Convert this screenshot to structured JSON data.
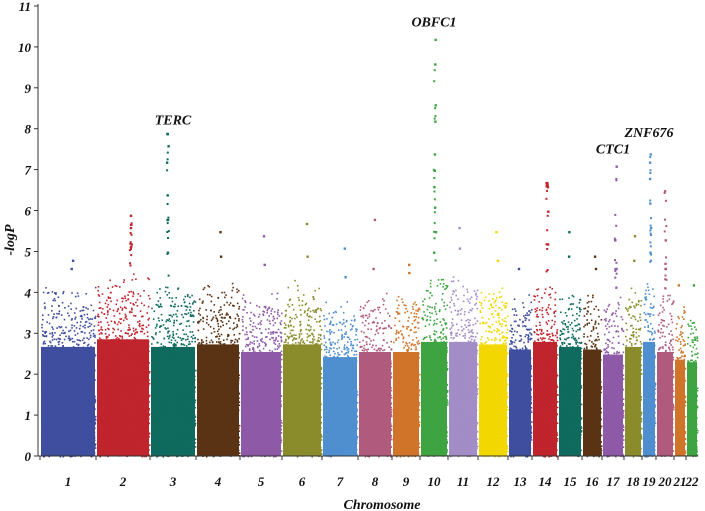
{
  "chart_data": {
    "type": "scatter",
    "subtype": "manhattan",
    "title": "",
    "xlabel": "Chromosome",
    "ylabel": "-logP",
    "ylim": [
      0,
      11
    ],
    "yticks": [
      0,
      1,
      2,
      3,
      4,
      5,
      6,
      7,
      8,
      9,
      10,
      11
    ],
    "chromosomes": [
      {
        "name": "1",
        "color": "#3f4e9e",
        "base_max": 4.3,
        "peaks": [
          4.6,
          4.8
        ]
      },
      {
        "name": "2",
        "color": "#c0242c",
        "base_max": 4.6,
        "peaks": [
          5.2,
          5.6,
          5.9
        ]
      },
      {
        "name": "3",
        "color": "#0f6b5e",
        "base_max": 4.3,
        "peaks": [
          5.0,
          5.8,
          6.4,
          7.2,
          7.6,
          7.9
        ]
      },
      {
        "name": "4",
        "color": "#5a3315",
        "base_max": 4.4,
        "peaks": [
          4.9,
          5.5
        ]
      },
      {
        "name": "5",
        "color": "#8e5aa8",
        "base_max": 4.1,
        "peaks": [
          4.7,
          5.4
        ]
      },
      {
        "name": "6",
        "color": "#8a8c2c",
        "base_max": 4.4,
        "peaks": [
          4.9,
          5.7
        ]
      },
      {
        "name": "7",
        "color": "#4f8fd0",
        "base_max": 3.9,
        "peaks": [
          4.4,
          5.1
        ]
      },
      {
        "name": "8",
        "color": "#b05b7e",
        "base_max": 4.1,
        "peaks": [
          4.6,
          5.8
        ]
      },
      {
        "name": "9",
        "color": "#d0742a",
        "base_max": 4.1,
        "peaks": [
          4.5,
          4.7
        ]
      },
      {
        "name": "10",
        "color": "#3ea441",
        "base_max": 4.5,
        "peaks": [
          5.0,
          5.5,
          6.1,
          6.6,
          7.0,
          7.4,
          8.2,
          8.6,
          9.6,
          10.2
        ]
      },
      {
        "name": "11",
        "color": "#a28dc6",
        "base_max": 4.5,
        "peaks": [
          5.1,
          5.6
        ]
      },
      {
        "name": "12",
        "color": "#f2d800",
        "base_max": 4.4,
        "peaks": [
          4.8,
          5.5
        ]
      },
      {
        "name": "13",
        "color": "#3f4e9e",
        "base_max": 4.2,
        "peaks": [
          4.6
        ]
      },
      {
        "name": "14",
        "color": "#c0242c",
        "base_max": 4.5,
        "peaks": [
          5.2,
          6.0,
          6.6,
          6.7
        ]
      },
      {
        "name": "15",
        "color": "#0f6b5e",
        "base_max": 4.3,
        "peaks": [
          4.9,
          5.5
        ]
      },
      {
        "name": "16",
        "color": "#5a3315",
        "base_max": 4.2,
        "peaks": [
          4.6,
          4.9
        ]
      },
      {
        "name": "17",
        "color": "#8e5aa8",
        "base_max": 4.0,
        "peaks": [
          4.6,
          5.3,
          7.1
        ]
      },
      {
        "name": "18",
        "color": "#8a8c2c",
        "base_max": 4.3,
        "peaks": [
          4.8,
          5.4
        ]
      },
      {
        "name": "19",
        "color": "#4f8fd0",
        "base_max": 4.5,
        "peaks": [
          5.0,
          5.6,
          6.2,
          6.8,
          7.2,
          7.4
        ]
      },
      {
        "name": "20",
        "color": "#b05b7e",
        "base_max": 4.1,
        "peaks": [
          4.6,
          5.3,
          6.5
        ]
      },
      {
        "name": "21",
        "color": "#d0742a",
        "base_max": 3.8,
        "peaks": [
          4.2
        ]
      },
      {
        "name": "22",
        "color": "#3ea441",
        "base_max": 3.7,
        "peaks": [
          4.2
        ]
      }
    ],
    "annotations": [
      {
        "text": "TERC",
        "chromosome": "3",
        "y": 8.1
      },
      {
        "text": "OBFC1",
        "chromosome": "10",
        "y": 10.5
      },
      {
        "text": "CTC1",
        "chromosome": "17",
        "y": 7.4
      },
      {
        "text": "ZNF676",
        "chromosome": "19",
        "y": 7.8
      }
    ]
  }
}
